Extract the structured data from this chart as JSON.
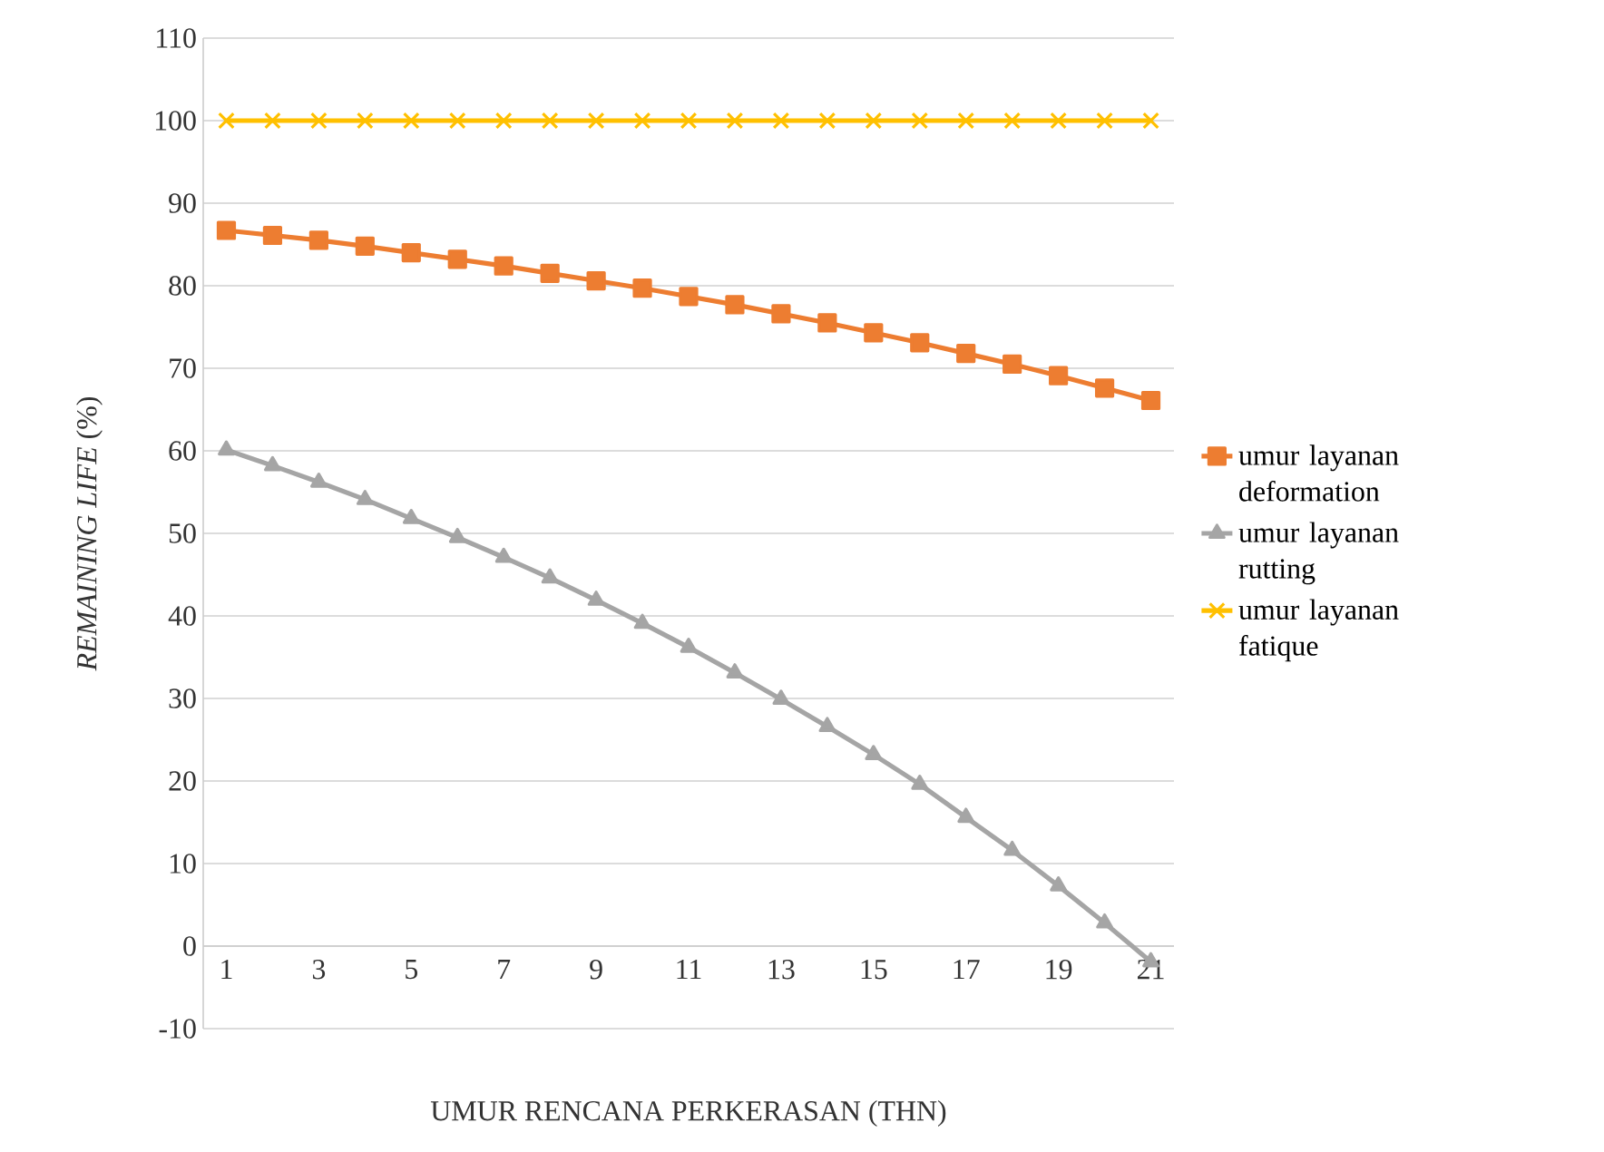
{
  "chart_data": {
    "type": "line",
    "xlabel": "UMUR RENCANA PERKERASAN (THN)",
    "ylabel": "*REMAINING LIFE* (%)",
    "categories": [
      "1",
      null,
      "3",
      null,
      "5",
      null,
      "7",
      null,
      "9",
      null,
      "11",
      null,
      "13",
      null,
      "15",
      null,
      "17",
      null,
      "19",
      null,
      "21"
    ],
    "series": [
      {
        "name": "umur layanan deformation",
        "color": "#ed7d31",
        "marker": "square",
        "values": [
          86.7,
          86.1,
          85.5,
          84.8,
          84.0,
          83.2,
          82.4,
          81.5,
          80.6,
          79.7,
          78.7,
          77.7,
          76.6,
          75.5,
          74.3,
          73.1,
          71.8,
          70.5,
          69.1,
          67.6,
          66.1
        ]
      },
      {
        "name": "umur layanan rutting",
        "color": "#a5a5a5",
        "marker": "triangle",
        "values": [
          60.1,
          58.2,
          56.2,
          54.1,
          51.8,
          49.5,
          47.1,
          44.6,
          41.9,
          39.1,
          36.2,
          33.1,
          29.9,
          26.6,
          23.2,
          19.6,
          15.6,
          11.6,
          7.3,
          2.8,
          -1.9
        ]
      },
      {
        "name": "umur layanan fatique",
        "color": "#ffc000",
        "marker": "cross",
        "values": [
          100,
          100,
          100,
          100,
          100,
          100,
          100,
          100,
          100,
          100,
          100,
          100,
          100,
          100,
          100,
          100,
          100,
          100,
          100,
          100,
          100
        ]
      }
    ],
    "ylim": [
      -10,
      110
    ],
    "yticks": [
      -10,
      0,
      10,
      20,
      30,
      40,
      50,
      60,
      70,
      80,
      90,
      100,
      110
    ],
    "grid": "y",
    "legend": "right",
    "line_style": "solid"
  }
}
